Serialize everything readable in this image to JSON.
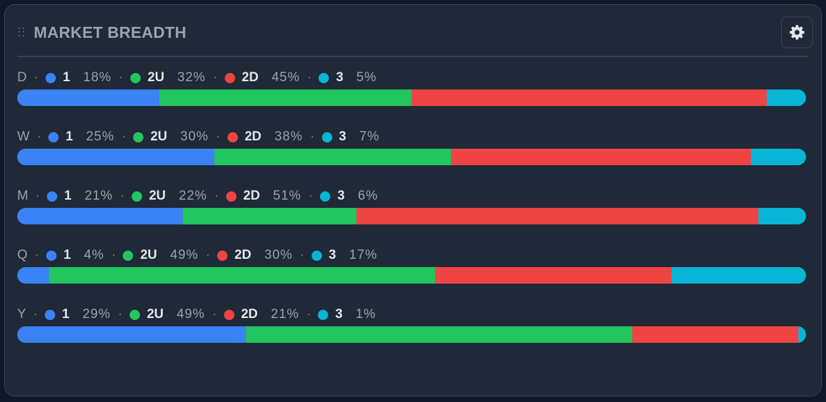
{
  "panel": {
    "title": "MARKET BREADTH",
    "settings_icon": "gear-icon",
    "drag_icon": "drag-handle-icon"
  },
  "colors": {
    "1": "#3b82f6",
    "2U": "#22c55e",
    "2D": "#ef4444",
    "3": "#06b6d4"
  },
  "separator": "·",
  "rows": [
    {
      "period": "D",
      "segments": [
        {
          "key": "1",
          "pct": "18%",
          "value": 18
        },
        {
          "key": "2U",
          "pct": "32%",
          "value": 32
        },
        {
          "key": "2D",
          "pct": "45%",
          "value": 45
        },
        {
          "key": "3",
          "pct": "5%",
          "value": 5
        }
      ]
    },
    {
      "period": "W",
      "segments": [
        {
          "key": "1",
          "pct": "25%",
          "value": 25
        },
        {
          "key": "2U",
          "pct": "30%",
          "value": 30
        },
        {
          "key": "2D",
          "pct": "38%",
          "value": 38
        },
        {
          "key": "3",
          "pct": "7%",
          "value": 7
        }
      ]
    },
    {
      "period": "M",
      "segments": [
        {
          "key": "1",
          "pct": "21%",
          "value": 21
        },
        {
          "key": "2U",
          "pct": "22%",
          "value": 22
        },
        {
          "key": "2D",
          "pct": "51%",
          "value": 51
        },
        {
          "key": "3",
          "pct": "6%",
          "value": 6
        }
      ]
    },
    {
      "period": "Q",
      "segments": [
        {
          "key": "1",
          "pct": "4%",
          "value": 4
        },
        {
          "key": "2U",
          "pct": "49%",
          "value": 49
        },
        {
          "key": "2D",
          "pct": "30%",
          "value": 30
        },
        {
          "key": "3",
          "pct": "17%",
          "value": 17
        }
      ]
    },
    {
      "period": "Y",
      "segments": [
        {
          "key": "1",
          "pct": "29%",
          "value": 29
        },
        {
          "key": "2U",
          "pct": "49%",
          "value": 49
        },
        {
          "key": "2D",
          "pct": "21%",
          "value": 21
        },
        {
          "key": "3",
          "pct": "1%",
          "value": 1
        }
      ]
    }
  ]
}
